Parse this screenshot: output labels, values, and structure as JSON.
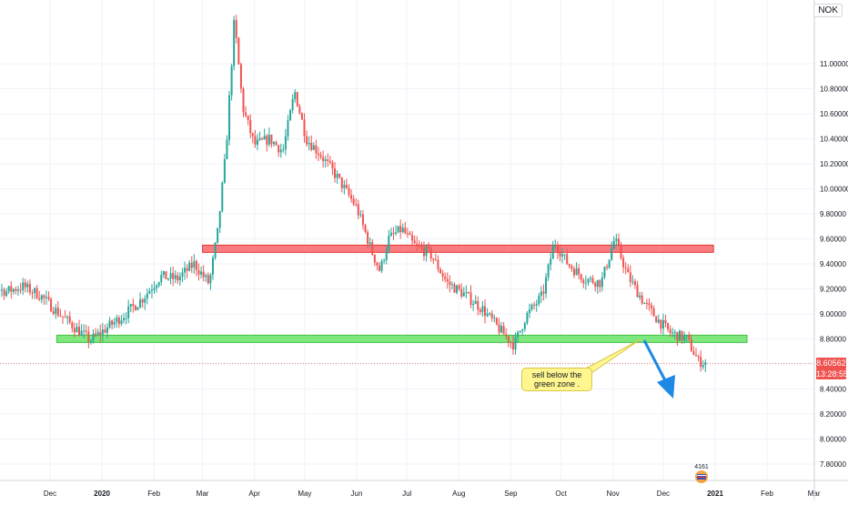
{
  "currency_label": "NOK",
  "annotation": {
    "line1": "sell below the",
    "line2": "green zone ."
  },
  "last_price": "8.60562",
  "countdown": "13:28:55",
  "badge_count": "4161",
  "colors": {
    "up": "#26a69a",
    "down": "#ef5350",
    "resistance_zone": "#f77c80",
    "support_zone": "#7ee87e",
    "arrow": "#1e88e5",
    "note": "#fff68f",
    "grid": "#f0f3fa"
  },
  "chart_data": {
    "type": "candlestick",
    "title": "",
    "xlabel": "",
    "ylabel": "",
    "ylim": [
      7.76,
      11.22
    ],
    "y_ticks": [
      "7.80000",
      "8.00000",
      "8.20000",
      "8.40000",
      "8.60000",
      "8.80000",
      "9.00000",
      "9.20000",
      "9.40000",
      "9.60000",
      "9.80000",
      "10.00000",
      "10.20000",
      "10.40000",
      "10.60000",
      "10.80000",
      "11.00000"
    ],
    "x_ticks": [
      "Dec",
      "2020",
      "Feb",
      "Mar",
      "Apr",
      "May",
      "Jun",
      "Jul",
      "Aug",
      "Sep",
      "Oct",
      "Nov",
      "Dec",
      "2021",
      "Feb",
      "Mar"
    ],
    "zones": [
      {
        "name": "resistance",
        "from": 9.5,
        "to": 9.55,
        "start": "2020-03-01",
        "end": "2020-12-31"
      },
      {
        "name": "support",
        "from": 8.78,
        "to": 8.83,
        "start": "2019-12-05",
        "end": "2021-01-20"
      }
    ],
    "last_price": 8.60562,
    "path": [
      [
        "2019-10-15",
        9.19
      ],
      [
        "2019-10-25",
        9.22
      ],
      [
        "2019-11-05",
        9.18
      ],
      [
        "2019-11-15",
        9.22
      ],
      [
        "2019-11-25",
        9.15
      ],
      [
        "2019-12-05",
        9.02
      ],
      [
        "2019-12-15",
        8.9
      ],
      [
        "2019-12-25",
        8.79
      ],
      [
        "2020-01-05",
        8.9
      ],
      [
        "2020-01-15",
        9.0
      ],
      [
        "2020-01-25",
        9.12
      ],
      [
        "2020-02-05",
        9.3
      ],
      [
        "2020-02-15",
        9.28
      ],
      [
        "2020-02-25",
        9.4
      ],
      [
        "2020-03-05",
        9.24
      ],
      [
        "2020-03-10",
        9.65
      ],
      [
        "2020-03-15",
        10.3
      ],
      [
        "2020-03-20",
        11.35
      ],
      [
        "2020-03-25",
        10.65
      ],
      [
        "2020-04-01",
        10.35
      ],
      [
        "2020-04-10",
        10.4
      ],
      [
        "2020-04-18",
        10.3
      ],
      [
        "2020-04-25",
        10.78
      ],
      [
        "2020-05-02",
        10.4
      ],
      [
        "2020-05-10",
        10.28
      ],
      [
        "2020-05-20",
        10.1
      ],
      [
        "2020-06-01",
        9.85
      ],
      [
        "2020-06-10",
        9.5
      ],
      [
        "2020-06-15",
        9.34
      ],
      [
        "2020-06-20",
        9.6
      ],
      [
        "2020-06-28",
        9.68
      ],
      [
        "2020-07-05",
        9.55
      ],
      [
        "2020-07-15",
        9.48
      ],
      [
        "2020-07-25",
        9.25
      ],
      [
        "2020-08-05",
        9.15
      ],
      [
        "2020-08-15",
        9.04
      ],
      [
        "2020-08-25",
        8.88
      ],
      [
        "2020-09-03",
        8.75
      ],
      [
        "2020-09-10",
        8.98
      ],
      [
        "2020-09-20",
        9.15
      ],
      [
        "2020-09-27",
        9.58
      ],
      [
        "2020-10-05",
        9.4
      ],
      [
        "2020-10-15",
        9.28
      ],
      [
        "2020-10-25",
        9.25
      ],
      [
        "2020-11-02",
        9.6
      ],
      [
        "2020-11-10",
        9.3
      ],
      [
        "2020-11-20",
        9.08
      ],
      [
        "2020-11-28",
        8.95
      ],
      [
        "2020-12-05",
        8.85
      ],
      [
        "2020-12-15",
        8.8
      ],
      [
        "2020-12-22",
        8.62
      ],
      [
        "2020-12-27",
        8.61
      ]
    ]
  }
}
